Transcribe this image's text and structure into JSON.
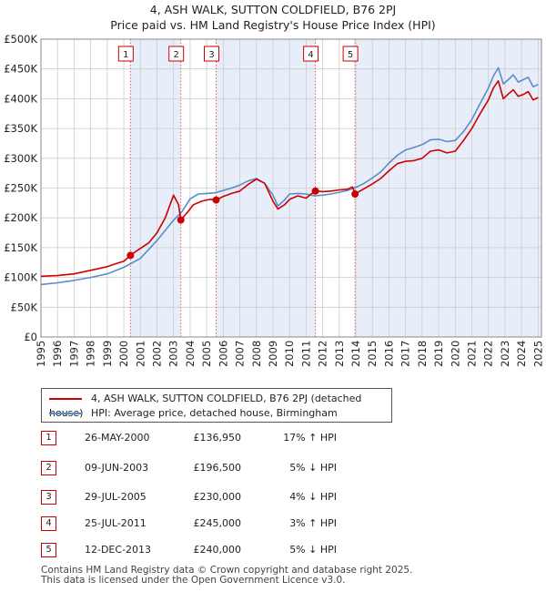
{
  "chart_data": {
    "type": "line",
    "title": "4, ASH WALK, SUTTON COLDFIELD, B76 2PJ",
    "subtitle": "Price paid vs. HM Land Registry's House Price Index (HPI)",
    "xlim": [
      1995,
      2025.2
    ],
    "ylim": [
      0,
      500000
    ],
    "x_ticks": [
      1995,
      1996,
      1997,
      1998,
      1999,
      2000,
      2001,
      2002,
      2003,
      2004,
      2005,
      2006,
      2007,
      2008,
      2009,
      2010,
      2011,
      2012,
      2013,
      2014,
      2015,
      2016,
      2017,
      2018,
      2019,
      2020,
      2021,
      2022,
      2023,
      2024,
      2025
    ],
    "y_ticks": [
      {
        "value": 0,
        "label": "£0"
      },
      {
        "value": 50000,
        "label": "£50K"
      },
      {
        "value": 100000,
        "label": "£100K"
      },
      {
        "value": 150000,
        "label": "£150K"
      },
      {
        "value": 200000,
        "label": "£200K"
      },
      {
        "value": 250000,
        "label": "£250K"
      },
      {
        "value": 300000,
        "label": "£300K"
      },
      {
        "value": 350000,
        "label": "£350K"
      },
      {
        "value": 400000,
        "label": "£400K"
      },
      {
        "value": 450000,
        "label": "£450K"
      },
      {
        "value": 500000,
        "label": "£500K"
      }
    ],
    "shaded_ranges": [
      [
        2000.4,
        2003.44
      ],
      [
        2005.57,
        2011.56
      ],
      [
        2013.95,
        2025.2
      ]
    ],
    "series": [
      {
        "name": "4, ASH WALK, SUTTON COLDFIELD, B76 2PJ (detached house)",
        "color": "#cc0000",
        "x": [
          1995,
          1996,
          1997,
          1998,
          1999,
          1999.5,
          2000.0,
          2000.4,
          2000.8,
          2001.5,
          2002,
          2002.5,
          2003.0,
          2003.3,
          2003.44,
          2003.8,
          2004.2,
          2004.7,
          2005.2,
          2005.57,
          2006,
          2006.5,
          2007,
          2007.5,
          2008,
          2008.5,
          2009.0,
          2009.3,
          2009.7,
          2010,
          2010.5,
          2011,
          2011.3,
          2011.56,
          2012,
          2012.5,
          2013,
          2013.5,
          2013.8,
          2013.95,
          2014.5,
          2015,
          2015.5,
          2016,
          2016.5,
          2017,
          2017.5,
          2018,
          2018.5,
          2019,
          2019.5,
          2020,
          2020.5,
          2021,
          2021.5,
          2022,
          2022.3,
          2022.6,
          2022.9,
          2023.2,
          2023.5,
          2023.8,
          2024.1,
          2024.4,
          2024.7,
          2025.0
        ],
        "values": [
          102000,
          103000,
          106000,
          112000,
          118000,
          123000,
          127000,
          136950,
          145000,
          158000,
          175000,
          200000,
          238000,
          222000,
          196500,
          208000,
          222000,
          228000,
          231000,
          230000,
          236000,
          241000,
          245000,
          256000,
          265000,
          258000,
          228000,
          215000,
          222000,
          231000,
          237000,
          233000,
          240000,
          245000,
          244000,
          245000,
          247000,
          248000,
          252000,
          240000,
          249000,
          257000,
          266000,
          279000,
          291000,
          295000,
          296000,
          300000,
          312000,
          314000,
          309000,
          312000,
          330000,
          350000,
          375000,
          398000,
          418000,
          430000,
          400000,
          408000,
          415000,
          404000,
          407000,
          412000,
          398000,
          402000
        ]
      },
      {
        "name": "HPI: Average price, detached house, Birmingham",
        "color": "#5b8cc8",
        "x": [
          1995,
          1996,
          1997,
          1998,
          1999,
          2000,
          2001,
          2002,
          2003,
          2003.5,
          2004,
          2004.5,
          2005,
          2005.5,
          2006,
          2006.5,
          2007,
          2007.5,
          2008,
          2008.5,
          2009.0,
          2009.3,
          2009.7,
          2010,
          2010.5,
          2011,
          2011.5,
          2012,
          2012.5,
          2013,
          2013.5,
          2014,
          2014.5,
          2015,
          2015.5,
          2016,
          2016.5,
          2017,
          2017.5,
          2018,
          2018.5,
          2019,
          2019.5,
          2020,
          2020.5,
          2021,
          2021.5,
          2022,
          2022.3,
          2022.6,
          2022.9,
          2023.2,
          2023.5,
          2023.8,
          2024.1,
          2024.4,
          2024.7,
          2025.0
        ],
        "values": [
          88000,
          91000,
          95000,
          100000,
          106000,
          117000,
          132000,
          162000,
          196000,
          210000,
          232000,
          240000,
          241000,
          242000,
          246000,
          250000,
          255000,
          262000,
          266000,
          258000,
          238000,
          220000,
          230000,
          240000,
          241000,
          240000,
          237000,
          238000,
          240000,
          243000,
          246000,
          251000,
          258000,
          267000,
          277000,
          292000,
          305000,
          314000,
          318000,
          323000,
          331000,
          332000,
          328000,
          330000,
          345000,
          365000,
          392000,
          418000,
          438000,
          452000,
          425000,
          432000,
          440000,
          428000,
          432000,
          436000,
          420000,
          424000
        ]
      }
    ],
    "markers": [
      {
        "label": "1",
        "x": 2000.4,
        "price": 136950
      },
      {
        "label": "2",
        "x": 2003.44,
        "price": 196500
      },
      {
        "label": "3",
        "x": 2005.57,
        "price": 230000
      },
      {
        "label": "4",
        "x": 2011.56,
        "price": 245000
      },
      {
        "label": "5",
        "x": 2013.95,
        "price": 240000
      }
    ]
  },
  "legend": {
    "property_label": "4, ASH WALK, SUTTON COLDFIELD, B76 2PJ (detached house)",
    "hpi_label": "HPI: Average price, detached house, Birmingham"
  },
  "transactions": [
    {
      "num": "1",
      "date": "26-MAY-2000",
      "price": "£136,950",
      "hpi": "17% ↑ HPI"
    },
    {
      "num": "2",
      "date": "09-JUN-2003",
      "price": "£196,500",
      "hpi": "5% ↓ HPI"
    },
    {
      "num": "3",
      "date": "29-JUL-2005",
      "price": "£230,000",
      "hpi": "4% ↓ HPI"
    },
    {
      "num": "4",
      "date": "25-JUL-2011",
      "price": "£245,000",
      "hpi": "3% ↑ HPI"
    },
    {
      "num": "5",
      "date": "12-DEC-2013",
      "price": "£240,000",
      "hpi": "5% ↓ HPI"
    }
  ],
  "footer": {
    "line1": "Contains HM Land Registry data © Crown copyright and database right 2025.",
    "line2": "This data is licensed under the Open Government Licence v3.0."
  }
}
